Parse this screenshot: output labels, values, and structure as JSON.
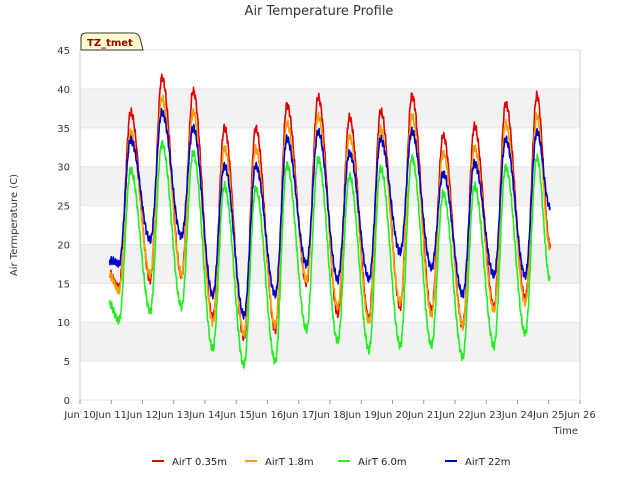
{
  "chart_data": {
    "type": "line",
    "title": "Air Temperature Profile",
    "xlabel": "Time",
    "ylabel": "Air Termperature (C)",
    "site_badge": "TZ_tmet",
    "ylim": [
      0,
      45
    ],
    "yticks": [
      0,
      5,
      10,
      15,
      20,
      25,
      30,
      35,
      40,
      45
    ],
    "xlim": [
      "Jun 10",
      "Jun 26"
    ],
    "xticks": [
      "Jun 10",
      "Jun 11",
      "Jun 12",
      "Jun 13",
      "Jun 14",
      "Jun 15",
      "Jun 16",
      "Jun 17",
      "Jun 18",
      "Jun 19",
      "Jun 20",
      "Jun 21",
      "Jun 22",
      "Jun 23",
      "Jun 24",
      "Jun 25",
      "Jun 26"
    ],
    "grid": "horizontal alternating bands",
    "legend_position": "bottom",
    "colors": {
      "AirT 0.35m": "#e00000",
      "AirT 1.8m": "#f5a000",
      "AirT 6.0m": "#22ee22",
      "AirT 22m": "#0000cc",
      "band": "#f2f2f2"
    },
    "daily_x": [
      "Jun 11",
      "Jun 12",
      "Jun 13",
      "Jun 14",
      "Jun 15",
      "Jun 16",
      "Jun 17",
      "Jun 18",
      "Jun 19",
      "Jun 20",
      "Jun 21",
      "Jun 22",
      "Jun 23",
      "Jun 24",
      "Jun 25"
    ],
    "series": [
      {
        "name": "AirT 0.35m",
        "start": 16.2,
        "daily_min": [
          14.5,
          15.5,
          16.0,
          10.5,
          8.0,
          9.0,
          15.0,
          11.0,
          10.5,
          12.0,
          11.5,
          9.5,
          12.0,
          13.0
        ],
        "daily_max": [
          37.0,
          41.5,
          39.8,
          35.0,
          35.0,
          38.0,
          39.0,
          36.3,
          37.2,
          39.2,
          34.0,
          35.2,
          38.2,
          39.2
        ],
        "end": 20.0
      },
      {
        "name": "AirT 1.8m",
        "start": 16.0,
        "daily_min": [
          14.0,
          16.0,
          16.0,
          10.0,
          8.5,
          9.5,
          15.5,
          12.0,
          10.0,
          12.5,
          11.0,
          9.5,
          11.5,
          12.5
        ],
        "daily_max": [
          34.5,
          38.8,
          37.0,
          32.5,
          32.3,
          35.5,
          36.5,
          34.0,
          34.8,
          36.5,
          31.8,
          32.5,
          35.5,
          36.5
        ],
        "end": 19.5
      },
      {
        "name": "AirT 6.0m",
        "start": 12.3,
        "daily_min": [
          10.2,
          11.5,
          12.0,
          6.5,
          4.5,
          5.0,
          9.0,
          7.5,
          6.5,
          7.0,
          7.0,
          5.5,
          7.0,
          8.5
        ],
        "daily_max": [
          29.5,
          33.0,
          31.8,
          27.5,
          27.2,
          30.3,
          31.0,
          28.8,
          29.8,
          31.2,
          26.5,
          27.5,
          30.0,
          31.2
        ],
        "end": 15.5
      },
      {
        "name": "AirT 22m",
        "start": 18.0,
        "daily_min": [
          17.5,
          20.5,
          21.0,
          13.5,
          10.8,
          13.5,
          17.5,
          15.5,
          15.5,
          19.0,
          17.0,
          13.5,
          16.0,
          16.0
        ],
        "daily_max": [
          33.5,
          37.0,
          35.0,
          30.2,
          30.2,
          33.5,
          34.5,
          31.8,
          33.5,
          34.5,
          29.2,
          30.5,
          33.5,
          34.5
        ],
        "end": 24.8
      }
    ]
  }
}
